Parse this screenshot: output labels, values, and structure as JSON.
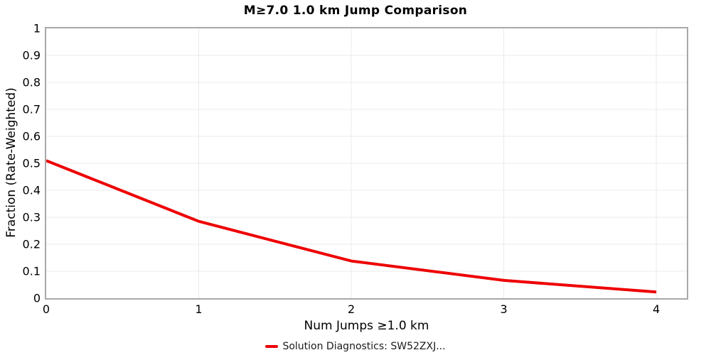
{
  "title": "M≥7.0 1.0 km Jump Comparison",
  "axes": {
    "x_label": "Num Jumps ≥1.0 km",
    "y_label": "Fraction (Rate-Weighted)"
  },
  "legend": {
    "label": "Solution Diagnostics: SW52ZXJ...",
    "marker_color": "#ee0000"
  },
  "colors": {
    "line": "#ee0000",
    "grid": "#ebebeb",
    "axis_border": "#a8a8a8",
    "text": "#000000",
    "background": "#ffffff"
  },
  "chart_data": {
    "type": "line",
    "title": "M≥7.0 1.0 km Jump Comparison",
    "xlabel": "Num Jumps ≥1.0 km",
    "ylabel": "Fraction (Rate-Weighted)",
    "series": [
      {
        "name": "Solution Diagnostics: SW52ZXJ...",
        "color": "#ee0000",
        "x": [
          0,
          1,
          2,
          3,
          4
        ],
        "y": [
          0.51,
          0.285,
          0.138,
          0.066,
          0.023
        ]
      }
    ],
    "xlim": [
      0,
      4.2
    ],
    "ylim": [
      0,
      1
    ],
    "x_ticks": [
      [
        0,
        "0"
      ],
      [
        1,
        "1"
      ],
      [
        2,
        "2"
      ],
      [
        3,
        "3"
      ],
      [
        4,
        "4"
      ]
    ],
    "y_ticks": [
      [
        0,
        "0"
      ],
      [
        0.1,
        "0.1"
      ],
      [
        0.2,
        "0.2"
      ],
      [
        0.3,
        "0.3"
      ],
      [
        0.4,
        "0.4"
      ],
      [
        0.5,
        "0.5"
      ],
      [
        0.6,
        "0.6"
      ],
      [
        0.7,
        "0.7"
      ],
      [
        0.8,
        "0.8"
      ],
      [
        0.9,
        "0.9"
      ],
      [
        1,
        "1"
      ]
    ],
    "grid": true,
    "legend_position": "bottom"
  }
}
